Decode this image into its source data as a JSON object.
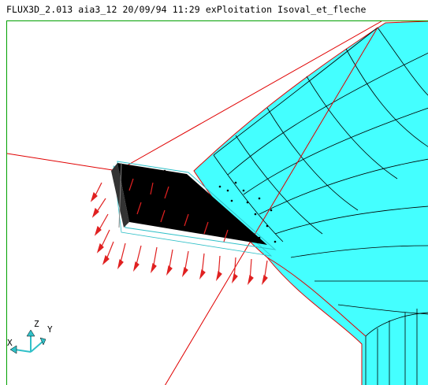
{
  "window": {
    "title": "FLUX3D_2.013 aia3_12 20/09/94 11:29 exPloitation Isoval_et_fleche"
  },
  "viewport": {
    "axes": {
      "x_label": "X",
      "y_label": "Y",
      "z_label": "Z"
    },
    "colors": {
      "mesh_fill": "#44ffff",
      "mesh_line": "#000000",
      "mesh_outline": "#e00000",
      "arrow": "#e02020",
      "block": "#000000",
      "frame": "#00a000",
      "axis_triad": "#30c0c8"
    }
  }
}
